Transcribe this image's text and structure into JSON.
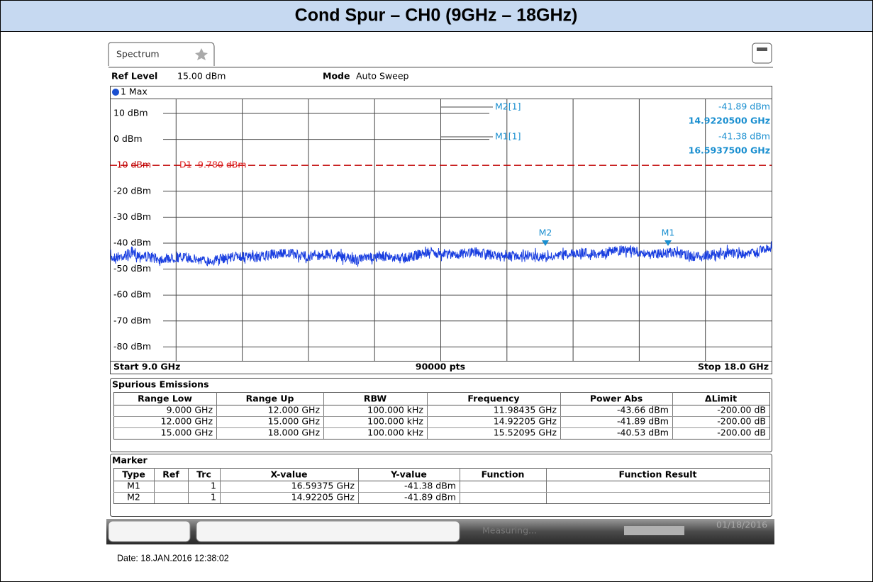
{
  "header": {
    "title": "Cond Spur  – CH0 (9GHz – 18GHz)"
  },
  "tab": {
    "label": "Spectrum"
  },
  "settings": {
    "ref_level_label": "Ref Level",
    "ref_level": "15.00 dBm",
    "mode_label": "Mode",
    "mode": "Auto Sweep"
  },
  "plot": {
    "trace": "1 Max",
    "y_labels": [
      "10 dBm",
      "0 dBm",
      "-10 dBm",
      "-20 dBm",
      "-30 dBm",
      "-40 dBm",
      "-50 dBm",
      "-60 dBm",
      "-70 dBm",
      "-80 dBm"
    ],
    "display_line": "D1  -9.780 dBm",
    "marker_readout": [
      {
        "name": "M2[1]",
        "level": "-41.89 dBm",
        "freq": "14.9220500 GHz"
      },
      {
        "name": "M1[1]",
        "level": "-41.38 dBm",
        "freq": "16.5937500 GHz"
      }
    ],
    "marker_tags": [
      "M2",
      "M1"
    ],
    "start": "Start 9.0 GHz",
    "points": "90000 pts",
    "stop": "Stop 18.0 GHz"
  },
  "spurious": {
    "title": "Spurious Emissions",
    "columns": [
      "Range Low",
      "Range Up",
      "RBW",
      "Frequency",
      "Power Abs",
      "ΔLimit"
    ],
    "rows": [
      [
        "9.000 GHz",
        "12.000 GHz",
        "100.000 kHz",
        "11.98435 GHz",
        "-43.66 dBm",
        "-200.00 dB"
      ],
      [
        "12.000 GHz",
        "15.000 GHz",
        "100.000 kHz",
        "14.92205 GHz",
        "-41.89 dBm",
        "-200.00 dB"
      ],
      [
        "15.000 GHz",
        "18.000 GHz",
        "100.000 kHz",
        "15.52095 GHz",
        "-40.53 dBm",
        "-200.00 dB"
      ]
    ]
  },
  "marker_table": {
    "title": "Marker",
    "columns": [
      "Type",
      "Ref",
      "Trc",
      "X-value",
      "Y-value",
      "Function",
      "Function Result"
    ],
    "rows": [
      {
        "type": "M1",
        "trc": "1",
        "x": "16.59375 GHz",
        "y": "-41.38 dBm"
      },
      {
        "type": "M2",
        "trc": "1",
        "x": "14.92205 GHz",
        "y": "-41.89 dBm"
      }
    ]
  },
  "status": {
    "text": "Measuring...",
    "date": "01/18/2016"
  },
  "footer": {
    "date": "Date: 18.JAN.2016  12:38:02"
  }
}
